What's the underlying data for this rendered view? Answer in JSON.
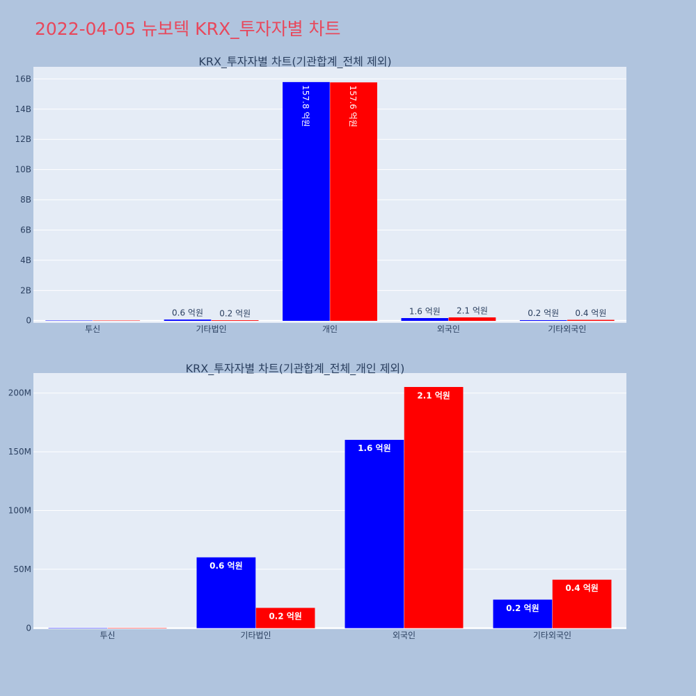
{
  "page": {
    "title": "2022-04-05 뉴보텍 KRX_투자자별 차트"
  },
  "colors": {
    "buy": "#0000ff",
    "sell": "#ff0000",
    "plot_bg": "#e5ecf6",
    "paper_bg": "#b0c4de",
    "title": "#e8475b",
    "axis_text": "#2a3f5f"
  },
  "chart_data": [
    {
      "type": "bar",
      "title": "KRX_투자자별 차트(기관합계_전체 제외)",
      "categories": [
        "투신",
        "기타법인",
        "개인",
        "외국인",
        "기타외국인"
      ],
      "series": [
        {
          "values": [
            0,
            60000000,
            15780000000,
            160000000,
            24000000
          ],
          "labels": [
            "",
            "0.6 억원",
            "157.8 억원",
            "1.6 억원",
            "0.2 억원"
          ]
        },
        {
          "values": [
            0,
            17000000,
            15760000000,
            205000000,
            41000000
          ],
          "labels": [
            "",
            "0.2 억원",
            "157.6 억원",
            "2.1 억원",
            "0.4 억원"
          ]
        }
      ],
      "ylim": [
        -150000000,
        16800000000
      ],
      "yticks": [
        0,
        2000000000,
        4000000000,
        6000000000,
        8000000000,
        10000000000,
        12000000000,
        14000000000,
        16000000000
      ],
      "ytick_labels": [
        "0",
        "2B",
        "4B",
        "6B",
        "8B",
        "10B",
        "12B",
        "14B",
        "16B"
      ],
      "text_position": "auto",
      "grid": true,
      "xlabel": "",
      "ylabel": ""
    },
    {
      "type": "bar",
      "title": "KRX_투자자별 차트(기관합계_전체_개인 제외)",
      "categories": [
        "투신",
        "기타법인",
        "외국인",
        "기타외국인"
      ],
      "series": [
        {
          "values": [
            0,
            60000000,
            160000000,
            24000000
          ],
          "labels": [
            "",
            "0.6 억원",
            "1.6 억원",
            "0.2 억원"
          ]
        },
        {
          "values": [
            0,
            17000000,
            205000000,
            41000000
          ],
          "labels": [
            "",
            "0.2 억원",
            "2.1 억원",
            "0.4 억원"
          ]
        }
      ],
      "ylim": [
        -1000000,
        217000000
      ],
      "yticks": [
        0,
        50000000,
        100000000,
        150000000,
        200000000
      ],
      "ytick_labels": [
        "0",
        "50M",
        "100M",
        "150M",
        "200M"
      ],
      "text_position": "inside",
      "grid": true,
      "xlabel": "",
      "ylabel": ""
    }
  ]
}
